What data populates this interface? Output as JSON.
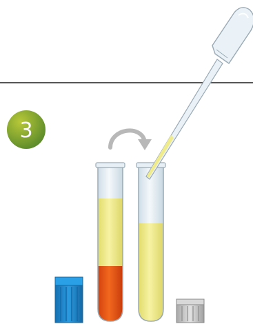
{
  "step": {
    "number": "3",
    "badge_color_light": "#b8c838",
    "badge_color_dark": "#5a8a2a"
  },
  "colors": {
    "divider": "#555555",
    "transfer_arrow": "#b8b8b8",
    "tube_glass": "#e6eff5",
    "tube_outline": "#9aaab5",
    "serum_yellow": "#f0ec8c",
    "clot_orange": "#e8521a",
    "blue_cap": "#1e8cd2",
    "grey_cap": "#c8c8c8",
    "pipette_body": "#eaf2f7"
  },
  "icons": {
    "transfer": "curved-arrow-icon",
    "pipette": "pipette-icon",
    "source_tube": "test-tube-icon",
    "target_tube": "test-tube-icon"
  }
}
